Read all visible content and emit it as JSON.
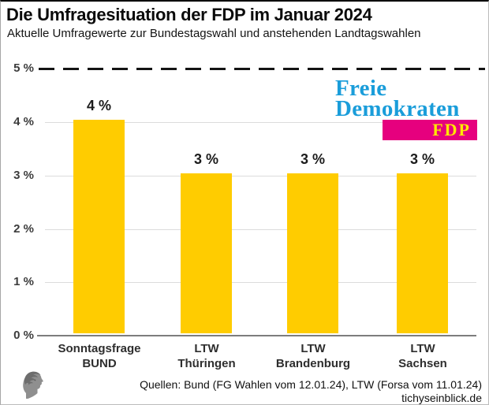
{
  "header": {
    "title": "Die Umfragesituation der FDP im Januar 2024",
    "subtitle": "Aktuelle Umfragewerte zur Bundestagswahl und anstehenden Landtagswahlen"
  },
  "chart_data": {
    "type": "bar",
    "title": "Die Umfragesituation der FDP im Januar 2024",
    "subtitle": "Aktuelle Umfragewerte zur Bundestagswahl und anstehenden Landtagswahlen",
    "categories": [
      "Sonntagsfrage BUND",
      "LTW Thüringen",
      "LTW Brandenburg",
      "LTW Sachsen"
    ],
    "category_lines": [
      [
        "Sonntagsfrage",
        "BUND"
      ],
      [
        "LTW",
        "Thüringen"
      ],
      [
        "LTW",
        "Brandenburg"
      ],
      [
        "LTW",
        "Sachsen"
      ]
    ],
    "values": [
      4,
      3,
      3,
      3
    ],
    "value_labels": [
      "4 %",
      "3 %",
      "3 %",
      "3 %"
    ],
    "unit": "%",
    "yticks": [
      "5 %",
      "4 %",
      "3 %",
      "2 %",
      "1 %",
      "0 %"
    ],
    "ylim": [
      0,
      5
    ],
    "grid": true,
    "legend_position": "none",
    "bar_color": "#FFCC00",
    "reference_line": {
      "value": 5,
      "style": "dashed",
      "color": "#141414"
    }
  },
  "fdp_logo": {
    "line1": "Freie",
    "line2": "Demokraten",
    "badge": "FDP",
    "text_color": "#1A9DDA",
    "badge_bg": "#E6007E",
    "badge_text_color": "#FFE800"
  },
  "footer": {
    "sources": "Quellen: Bund (FG Wahlen vom 12.01.24), LTW (Forsa vom 11.01.24)",
    "site": "tichyseinblick.de"
  },
  "icons": {
    "head_logo": "tichys-einblick-head-profile-logo"
  }
}
